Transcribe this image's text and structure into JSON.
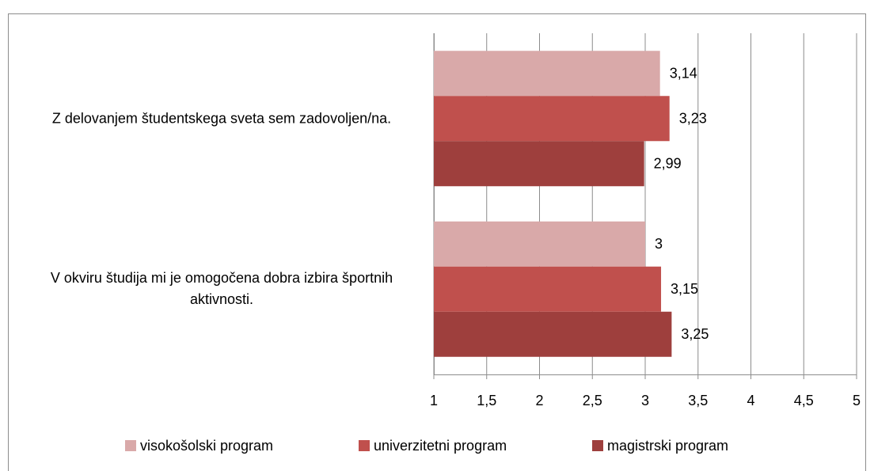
{
  "chart_data": {
    "type": "barh",
    "categories": [
      "Z delovanjem študentskega sveta sem zadovoljen/na.",
      "V okviru študija mi je omogočena dobra izbira športnih aktivnosti."
    ],
    "series": [
      {
        "name": "visokošolski program",
        "color": "#d9a9a9",
        "values": [
          3.14,
          3
        ],
        "value_labels": [
          "3,14",
          "3"
        ]
      },
      {
        "name": "univerzitetni program",
        "color": "#c0504d",
        "values": [
          3.23,
          3.15
        ],
        "value_labels": [
          "3,23",
          "3,15"
        ]
      },
      {
        "name": "magistrski program",
        "color": "#9e3f3d",
        "values": [
          2.99,
          3.25
        ],
        "value_labels": [
          "2,99",
          "3,25"
        ]
      }
    ],
    "xlim": [
      1,
      5
    ],
    "xticks": [
      1,
      {
        "value": 1.5,
        "label": "1,5"
      },
      2,
      {
        "value": 2.5,
        "label": "2,5"
      },
      3,
      {
        "value": 3.5,
        "label": "3,5"
      },
      4,
      {
        "value": 4.5,
        "label": "4,5"
      },
      5
    ],
    "grid": true,
    "legend": "bottom"
  }
}
